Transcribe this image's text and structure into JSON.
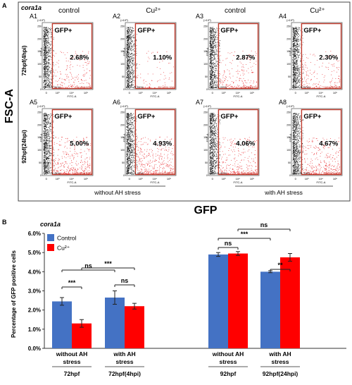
{
  "panel_a": {
    "letter": "A",
    "gene": "cora1a",
    "y_axis_title": "FSC-A",
    "x_axis_title": "GFP",
    "row_labels": [
      "72hpf(4hpi)",
      "92hpf(24hpi)"
    ],
    "col_labels": [
      "control",
      "Cu²⁺",
      "control",
      "Cu²⁺"
    ],
    "condition_labels": [
      "without AH stress",
      "with AH stress"
    ],
    "gate_label": "GFP+",
    "sub_x_label": "FITC-A",
    "sub_y_label": "FSC-A",
    "x_ticks": [
      "0",
      "10³",
      "10⁴",
      "10⁵"
    ],
    "y_ticks": [
      "0",
      "50",
      "100",
      "150",
      "200",
      "250"
    ],
    "y_unit": "(×10³)",
    "plots": [
      {
        "id": "A1",
        "percent": "2.68%",
        "ll": "Q2-LL(9..31%)",
        "lr": "Q2-LR(2.68%)"
      },
      {
        "id": "A2",
        "percent": "1.10%",
        "ll": "Q2-LL(9..89%)",
        "lr": "Q2-LR(1.10%)"
      },
      {
        "id": "A3",
        "percent": "2.87%",
        "ll": "Q2-LL(9..09%)",
        "lr": "Q2-LR(2.87%)"
      },
      {
        "id": "A4",
        "percent": "2.30%",
        "ll": "Q2-LL(9..81%)",
        "lr": "Q2-LR(2.30%)"
      },
      {
        "id": "A5",
        "percent": "5.00%",
        "ll": "Q2-LL(9..46%)",
        "lr": "Q2-LR(5.00%)"
      },
      {
        "id": "A6",
        "percent": "4.93%",
        "ll": "Q2-LL(9..81%)",
        "lr": "Q2-LR(4.93%)"
      },
      {
        "id": "A7",
        "percent": "4.06%",
        "ll": "Q2-LL(9..92%)",
        "lr": "Q2-LR(4.06%)"
      },
      {
        "id": "A8",
        "percent": "4.67%",
        "ll": "Q2-LL(9..13%)",
        "lr": "Q2-LR(4.67%)"
      }
    ]
  },
  "panel_b": {
    "letter": "B",
    "gene": "cora1a"
  },
  "colors": {
    "control": "#4472C4",
    "cu": "#FF0000",
    "gate": "#C0392B",
    "dots_black": "#111111",
    "dots_red": "#E8262A"
  },
  "chart_data": {
    "type": "bar",
    "ylabel": "Percentage of GFP positive cells",
    "ylim": [
      0,
      6
    ],
    "yticks": [
      "0.0%",
      "1.0%",
      "2.0%",
      "3.0%",
      "4.0%",
      "5.0%",
      "6.0%"
    ],
    "legend_position": "top-left",
    "groups": [
      {
        "l1": "without AH",
        "l2": "stress",
        "l3": "72hpf"
      },
      {
        "l1": "with AH",
        "l2": "stress",
        "l3": "72hpf(4hpi)"
      },
      {
        "l1": "without AH",
        "l2": "stress",
        "l3": "92hpf"
      },
      {
        "l1": "with AH",
        "l2": "stress",
        "l3": "92hpf(24hpi)"
      }
    ],
    "series": [
      {
        "name": "Control",
        "values": [
          2.45,
          2.65,
          4.9,
          4.0
        ],
        "errors": [
          0.2,
          0.35,
          0.1,
          0.05
        ]
      },
      {
        "name": "Cu²⁺",
        "values": [
          1.3,
          2.2,
          4.95,
          4.75
        ],
        "errors": [
          0.2,
          0.15,
          0.1,
          0.2
        ]
      }
    ],
    "significance": [
      {
        "label": "***",
        "from": [
          0,
          0
        ],
        "to": [
          0,
          1
        ]
      },
      {
        "label": "ns",
        "from": [
          0,
          0
        ],
        "to": [
          1,
          0
        ]
      },
      {
        "label": "***",
        "from": [
          0,
          1
        ],
        "to": [
          1,
          1
        ]
      },
      {
        "label": "ns",
        "from": [
          1,
          0
        ],
        "to": [
          1,
          1
        ]
      },
      {
        "label": "ns",
        "from": [
          2,
          0
        ],
        "to": [
          2,
          1
        ]
      },
      {
        "label": "**",
        "from": [
          3,
          0
        ],
        "to": [
          3,
          1
        ]
      },
      {
        "label": "***",
        "from": [
          2,
          0
        ],
        "to": [
          3,
          0
        ]
      },
      {
        "label": "ns",
        "from": [
          2,
          1
        ],
        "to": [
          3,
          1
        ]
      }
    ]
  }
}
